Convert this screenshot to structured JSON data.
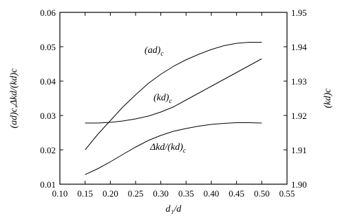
{
  "chart_data": {
    "type": "line",
    "xlabel": "d₁/d",
    "ylabel_left": "(ad)c,Δkd/(kd)c",
    "ylabel_right": "(kd)c",
    "xlim": [
      0.1,
      0.55
    ],
    "ylim_left": [
      0.01,
      0.06
    ],
    "ylim_right": [
      1.9,
      1.95
    ],
    "x_ticks": [
      "0.10",
      "0.15",
      "0.20",
      "0.25",
      "0.30",
      "0.35",
      "0.40",
      "0.45",
      "0.50",
      "0.55"
    ],
    "y_left_ticks": [
      "0.01",
      "0.02",
      "0.03",
      "0.04",
      "0.05",
      "0.06"
    ],
    "y_right_ticks": [
      "1.90",
      "1.91",
      "1.92",
      "1.93",
      "1.94",
      "1.95"
    ],
    "grid": false,
    "series": [
      {
        "axis": "left",
        "label_main": "(ad)",
        "label_sub": "c",
        "x": [
          0.15,
          0.175,
          0.2,
          0.225,
          0.25,
          0.275,
          0.3,
          0.325,
          0.35,
          0.375,
          0.4,
          0.425,
          0.45,
          0.475,
          0.5
        ],
        "y": [
          0.02,
          0.0245,
          0.0285,
          0.0325,
          0.036,
          0.0393,
          0.042,
          0.0443,
          0.0462,
          0.0478,
          0.0492,
          0.0503,
          0.051,
          0.0513,
          0.0513
        ]
      },
      {
        "axis": "right",
        "label_main": "(kd)",
        "label_sub": "c",
        "x": [
          0.15,
          0.175,
          0.2,
          0.225,
          0.25,
          0.275,
          0.3,
          0.325,
          0.35,
          0.375,
          0.4,
          0.425,
          0.45,
          0.475,
          0.5
        ],
        "y": [
          1.9178,
          1.9178,
          1.918,
          1.9184,
          1.919,
          1.9198,
          1.921,
          1.9225,
          1.9245,
          1.9265,
          1.9285,
          1.9305,
          1.9325,
          1.9345,
          1.9365
        ]
      },
      {
        "axis": "left",
        "label_main": "Δkd/(kd)",
        "label_sub": "c",
        "x": [
          0.15,
          0.175,
          0.2,
          0.225,
          0.25,
          0.275,
          0.3,
          0.325,
          0.35,
          0.375,
          0.4,
          0.425,
          0.45,
          0.475,
          0.5
        ],
        "y": [
          0.0128,
          0.0145,
          0.0165,
          0.0187,
          0.0208,
          0.0227,
          0.0242,
          0.0254,
          0.0262,
          0.0269,
          0.0274,
          0.0277,
          0.0279,
          0.0279,
          0.0278
        ]
      }
    ]
  }
}
